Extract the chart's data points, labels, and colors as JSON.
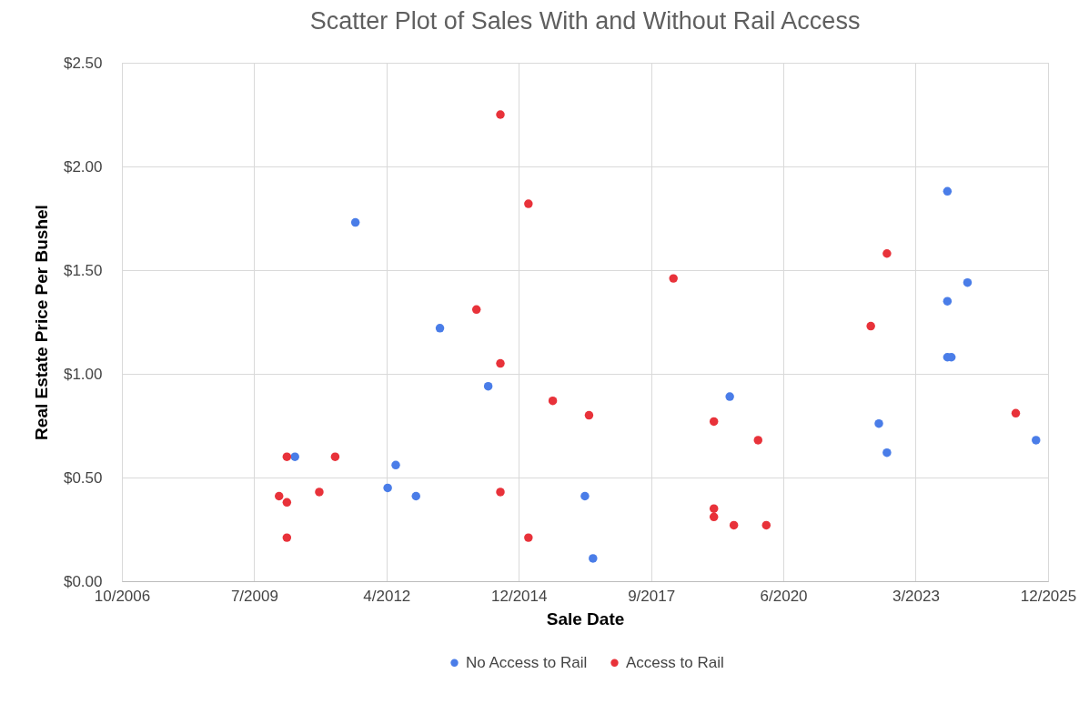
{
  "chart_data": {
    "type": "scatter",
    "title": "Scatter Plot of Sales With and Without Rail Access",
    "xlabel": "Sale Date",
    "ylabel": "Real Estate Price Per Bushel",
    "xlim": [
      "2006-10-01",
      "2025-12-01"
    ],
    "xticks": [
      {
        "value": "2006-10-01",
        "label": "10/2006"
      },
      {
        "value": "2009-06-27",
        "label": "7/2009"
      },
      {
        "value": "2012-03-23",
        "label": "4/2012"
      },
      {
        "value": "2014-12-18",
        "label": "12/2014"
      },
      {
        "value": "2017-09-13",
        "label": "9/2017"
      },
      {
        "value": "2020-06-09",
        "label": "6/2020"
      },
      {
        "value": "2023-03-06",
        "label": "3/2023"
      },
      {
        "value": "2025-12-01",
        "label": "12/2025"
      }
    ],
    "ylim": [
      0,
      2.5
    ],
    "yticks": [
      {
        "value": 0,
        "label": "$0.00"
      },
      {
        "value": 0.5,
        "label": "$0.50"
      },
      {
        "value": 1,
        "label": "$1.00"
      },
      {
        "value": 1.5,
        "label": "$1.50"
      },
      {
        "value": 2,
        "label": "$2.00"
      },
      {
        "value": 2.5,
        "label": "$2.50"
      }
    ],
    "grid": true,
    "legend": "bottom",
    "marker": "circle",
    "series": [
      {
        "name": "No Access to Rail",
        "color": "#4a7de8",
        "x": [
          "2011-08",
          "2013-05",
          "2014-05",
          "2010-05",
          "2012-06",
          "2012-04",
          "2012-11",
          "2016-05",
          "2016-07",
          "2019-05",
          "2022-06",
          "2022-08",
          "2023-11",
          "2024-04",
          "2023-11",
          "2023-11",
          "2023-12",
          "2025-09"
        ],
        "values": [
          1.73,
          1.22,
          0.94,
          0.6,
          0.56,
          0.45,
          0.41,
          0.41,
          0.11,
          0.89,
          0.76,
          0.62,
          1.88,
          1.44,
          1.35,
          1.08,
          1.08,
          0.68
        ]
      },
      {
        "name": "Access to Rail",
        "color": "#e8323a",
        "x": [
          "2014-08",
          "2015-03",
          "2014-02",
          "2014-08",
          "2015-09",
          "2016-06",
          "2010-03",
          "2011-03",
          "2010-01",
          "2010-03",
          "2010-11",
          "2010-03",
          "2014-08",
          "2015-03",
          "2018-03",
          "2019-01",
          "2019-12",
          "2019-01",
          "2019-01",
          "2019-06",
          "2020-02",
          "2022-08",
          "2022-04",
          "2025-04"
        ],
        "values": [
          2.25,
          1.82,
          1.31,
          1.05,
          0.87,
          0.8,
          0.6,
          0.6,
          0.41,
          0.38,
          0.43,
          0.21,
          0.43,
          0.21,
          1.46,
          0.77,
          0.68,
          0.35,
          0.31,
          0.27,
          0.27,
          1.58,
          1.23,
          0.81
        ]
      }
    ]
  }
}
